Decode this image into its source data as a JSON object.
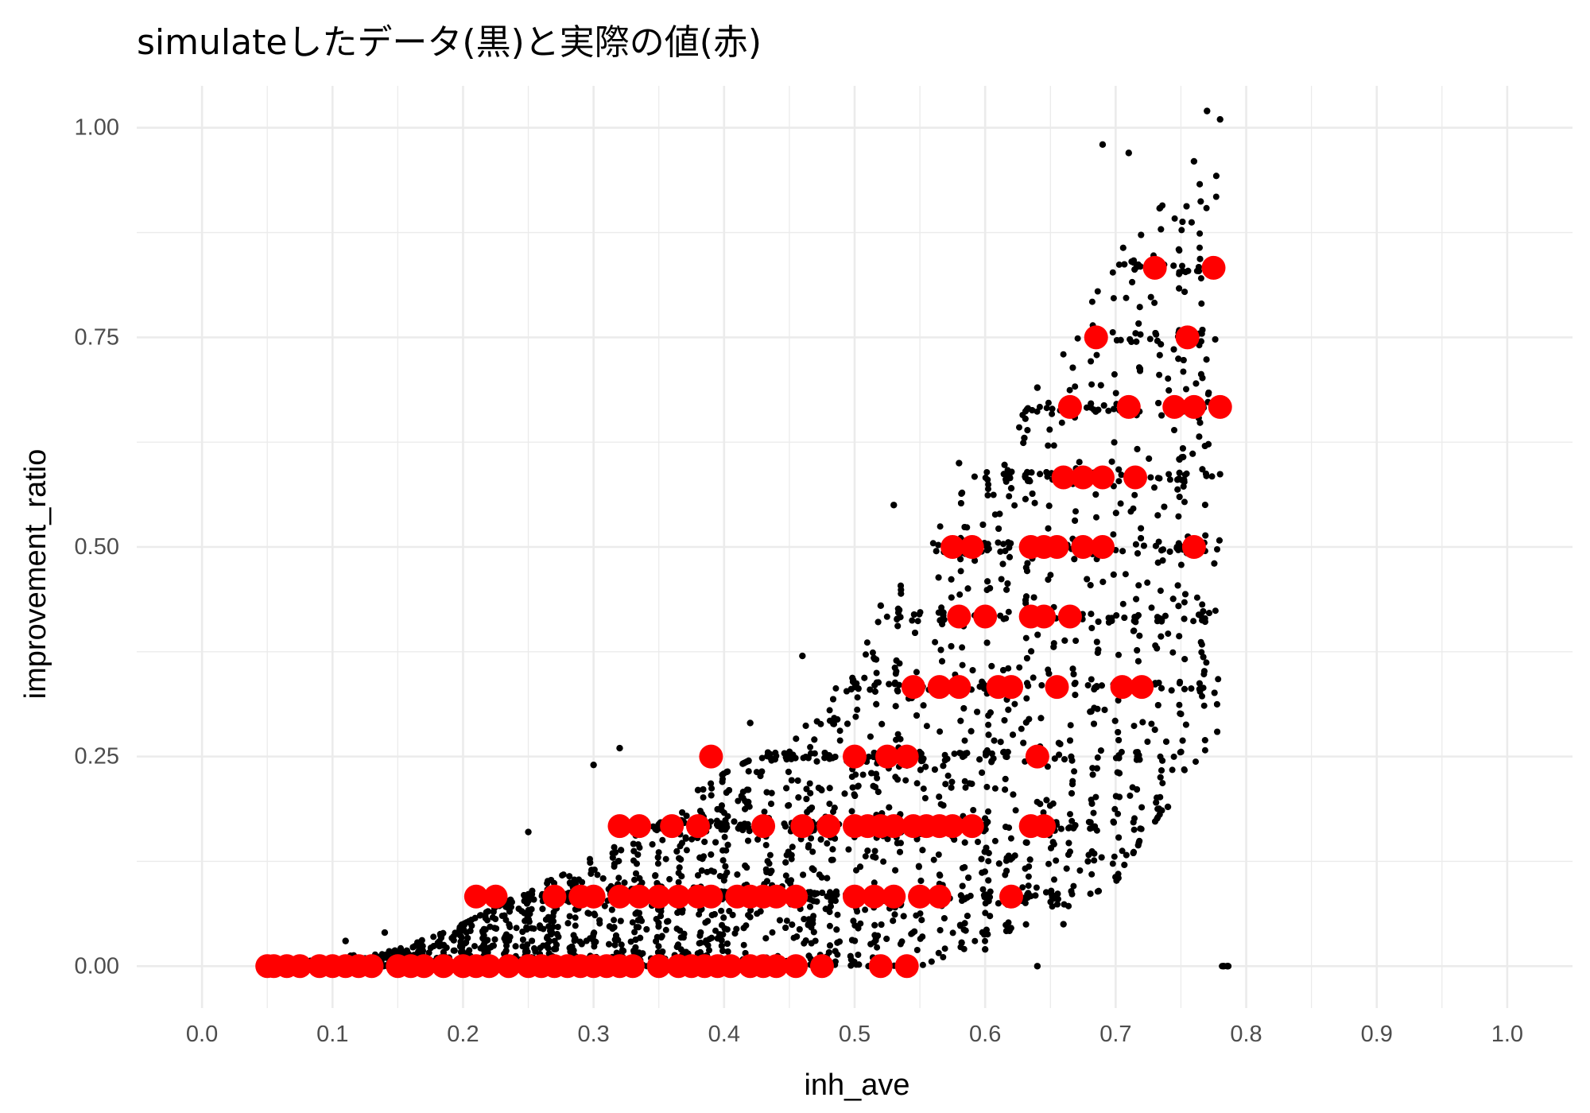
{
  "chart_data": {
    "type": "scatter",
    "title": "simulateしたデータ(黒)と実際の値(赤)",
    "xlabel": "inh_ave",
    "ylabel": "improvement_ratio",
    "xlim": [
      -0.05,
      1.05
    ],
    "ylim": [
      -0.05,
      1.05
    ],
    "x_ticks": [
      0.0,
      0.1,
      0.2,
      0.3,
      0.4,
      0.5,
      0.6,
      0.7,
      0.8,
      0.9,
      1.0
    ],
    "x_tick_labels": [
      "0.0",
      "0.1",
      "0.2",
      "0.3",
      "0.4",
      "0.5",
      "0.6",
      "0.7",
      "0.8",
      "0.9",
      "1.0"
    ],
    "y_ticks": [
      0.0,
      0.25,
      0.5,
      0.75,
      1.0
    ],
    "y_tick_labels": [
      "0.00",
      "0.25",
      "0.50",
      "0.75",
      "1.00"
    ],
    "grid": true,
    "legend": "none",
    "colors": {
      "simulated": "#000000",
      "actual": "#ff0000"
    },
    "series": [
      {
        "color": "#000000",
        "envelope": [
          [
            0.05,
            0.0,
            0.0
          ],
          [
            0.1,
            0.0,
            0.01
          ],
          [
            0.15,
            0.0,
            0.02
          ],
          [
            0.2,
            0.0,
            0.05
          ],
          [
            0.25,
            0.0,
            0.09
          ],
          [
            0.3,
            0.0,
            0.13
          ],
          [
            0.35,
            0.0,
            0.17
          ],
          [
            0.4,
            0.0,
            0.23
          ],
          [
            0.45,
            0.0,
            0.27
          ],
          [
            0.5,
            0.0,
            0.36
          ],
          [
            0.55,
            0.0,
            0.5
          ],
          [
            0.6,
            0.03,
            0.6
          ],
          [
            0.65,
            0.06,
            0.7
          ],
          [
            0.7,
            0.1,
            0.85
          ],
          [
            0.75,
            0.22,
            0.93
          ],
          [
            0.78,
            0.28,
            0.95
          ]
        ],
        "outliers": [
          [
            0.11,
            0.03
          ],
          [
            0.14,
            0.04
          ],
          [
            0.22,
            0.08
          ],
          [
            0.25,
            0.16
          ],
          [
            0.3,
            0.24
          ],
          [
            0.32,
            0.26
          ],
          [
            0.38,
            0.21
          ],
          [
            0.42,
            0.29
          ],
          [
            0.46,
            0.37
          ],
          [
            0.52,
            0.43
          ],
          [
            0.53,
            0.55
          ],
          [
            0.58,
            0.6
          ],
          [
            0.62,
            0.57
          ],
          [
            0.63,
            0.63
          ],
          [
            0.64,
            0.69
          ],
          [
            0.69,
            0.98
          ],
          [
            0.71,
            0.97
          ],
          [
            0.76,
            0.96
          ],
          [
            0.77,
            1.02
          ],
          [
            0.78,
            1.01
          ],
          [
            0.74,
            0.19
          ],
          [
            0.64,
            0.0
          ],
          [
            0.6,
            0.02
          ],
          [
            0.66,
            0.05
          ]
        ]
      },
      {
        "color": "#ff0000",
        "points": [
          [
            0.05,
            0.0
          ],
          [
            0.055,
            0.0
          ],
          [
            0.065,
            0.0
          ],
          [
            0.075,
            0.0
          ],
          [
            0.09,
            0.0
          ],
          [
            0.1,
            0.0
          ],
          [
            0.11,
            0.0
          ],
          [
            0.12,
            0.0
          ],
          [
            0.13,
            0.0
          ],
          [
            0.15,
            0.0
          ],
          [
            0.16,
            0.0
          ],
          [
            0.17,
            0.0
          ],
          [
            0.185,
            0.0
          ],
          [
            0.2,
            0.0
          ],
          [
            0.21,
            0.0
          ],
          [
            0.22,
            0.0
          ],
          [
            0.235,
            0.0
          ],
          [
            0.25,
            0.0
          ],
          [
            0.26,
            0.0
          ],
          [
            0.27,
            0.0
          ],
          [
            0.28,
            0.0
          ],
          [
            0.29,
            0.0
          ],
          [
            0.3,
            0.0
          ],
          [
            0.31,
            0.0
          ],
          [
            0.32,
            0.0
          ],
          [
            0.33,
            0.0
          ],
          [
            0.35,
            0.0
          ],
          [
            0.365,
            0.0
          ],
          [
            0.375,
            0.0
          ],
          [
            0.385,
            0.0
          ],
          [
            0.395,
            0.0
          ],
          [
            0.405,
            0.0
          ],
          [
            0.42,
            0.0
          ],
          [
            0.43,
            0.0
          ],
          [
            0.44,
            0.0
          ],
          [
            0.455,
            0.0
          ],
          [
            0.475,
            0.0
          ],
          [
            0.52,
            0.0
          ],
          [
            0.54,
            0.0
          ],
          [
            0.21,
            0.083
          ],
          [
            0.225,
            0.083
          ],
          [
            0.27,
            0.083
          ],
          [
            0.29,
            0.083
          ],
          [
            0.3,
            0.083
          ],
          [
            0.32,
            0.083
          ],
          [
            0.335,
            0.083
          ],
          [
            0.35,
            0.083
          ],
          [
            0.365,
            0.083
          ],
          [
            0.38,
            0.083
          ],
          [
            0.39,
            0.083
          ],
          [
            0.41,
            0.083
          ],
          [
            0.42,
            0.083
          ],
          [
            0.43,
            0.083
          ],
          [
            0.44,
            0.083
          ],
          [
            0.455,
            0.083
          ],
          [
            0.5,
            0.083
          ],
          [
            0.515,
            0.083
          ],
          [
            0.53,
            0.083
          ],
          [
            0.55,
            0.083
          ],
          [
            0.565,
            0.083
          ],
          [
            0.62,
            0.083
          ],
          [
            0.32,
            0.167
          ],
          [
            0.335,
            0.167
          ],
          [
            0.36,
            0.167
          ],
          [
            0.38,
            0.167
          ],
          [
            0.43,
            0.167
          ],
          [
            0.46,
            0.167
          ],
          [
            0.48,
            0.167
          ],
          [
            0.5,
            0.167
          ],
          [
            0.51,
            0.167
          ],
          [
            0.52,
            0.167
          ],
          [
            0.53,
            0.167
          ],
          [
            0.545,
            0.167
          ],
          [
            0.555,
            0.167
          ],
          [
            0.565,
            0.167
          ],
          [
            0.575,
            0.167
          ],
          [
            0.59,
            0.167
          ],
          [
            0.635,
            0.167
          ],
          [
            0.645,
            0.167
          ],
          [
            0.39,
            0.25
          ],
          [
            0.5,
            0.25
          ],
          [
            0.525,
            0.25
          ],
          [
            0.54,
            0.25
          ],
          [
            0.64,
            0.25
          ],
          [
            0.545,
            0.333
          ],
          [
            0.565,
            0.333
          ],
          [
            0.58,
            0.333
          ],
          [
            0.61,
            0.333
          ],
          [
            0.62,
            0.333
          ],
          [
            0.655,
            0.333
          ],
          [
            0.705,
            0.333
          ],
          [
            0.72,
            0.333
          ],
          [
            0.58,
            0.417
          ],
          [
            0.6,
            0.417
          ],
          [
            0.635,
            0.417
          ],
          [
            0.645,
            0.417
          ],
          [
            0.665,
            0.417
          ],
          [
            0.575,
            0.5
          ],
          [
            0.59,
            0.5
          ],
          [
            0.635,
            0.5
          ],
          [
            0.645,
            0.5
          ],
          [
            0.655,
            0.5
          ],
          [
            0.675,
            0.5
          ],
          [
            0.69,
            0.5
          ],
          [
            0.76,
            0.5
          ],
          [
            0.66,
            0.583
          ],
          [
            0.675,
            0.583
          ],
          [
            0.69,
            0.583
          ],
          [
            0.715,
            0.583
          ],
          [
            0.665,
            0.667
          ],
          [
            0.71,
            0.667
          ],
          [
            0.745,
            0.667
          ],
          [
            0.76,
            0.667
          ],
          [
            0.78,
            0.667
          ],
          [
            0.685,
            0.75
          ],
          [
            0.755,
            0.75
          ],
          [
            0.73,
            0.833
          ],
          [
            0.775,
            0.833
          ]
        ]
      }
    ]
  }
}
